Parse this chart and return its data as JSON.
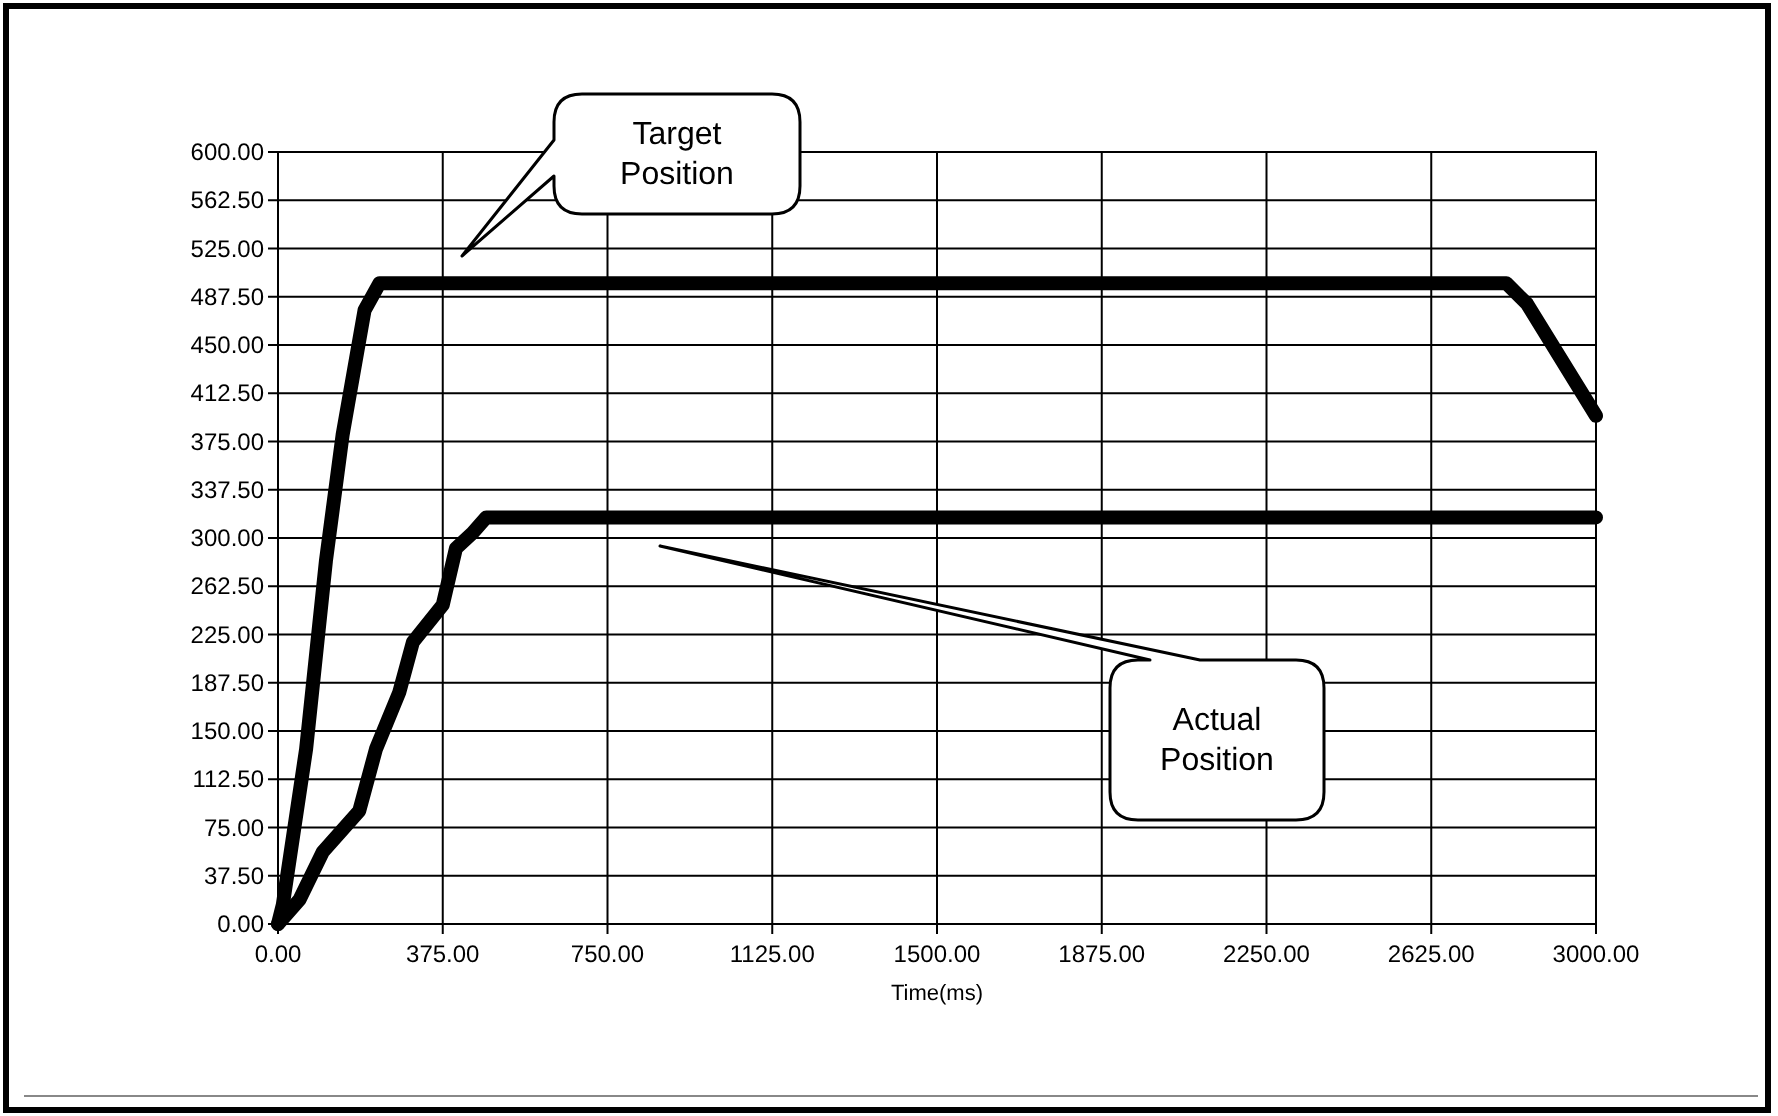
{
  "chart_data": {
    "type": "line",
    "xlabel": "Time(ms)",
    "xlim": [
      0,
      3000
    ],
    "ylim": [
      0,
      600
    ],
    "xticks": [
      {
        "value": 0,
        "label": "0.00"
      },
      {
        "value": 375,
        "label": "375.00"
      },
      {
        "value": 750,
        "label": "750.00"
      },
      {
        "value": 1125,
        "label": "1125.00"
      },
      {
        "value": 1500,
        "label": "1500.00"
      },
      {
        "value": 1875,
        "label": "1875.00"
      },
      {
        "value": 2250,
        "label": "2250.00"
      },
      {
        "value": 2625,
        "label": "2625.00"
      },
      {
        "value": 3000,
        "label": "3000.00"
      }
    ],
    "yticks": [
      {
        "value": 0,
        "label": "0.00"
      },
      {
        "value": 37.5,
        "label": "37.50"
      },
      {
        "value": 75,
        "label": "75.00"
      },
      {
        "value": 112.5,
        "label": "112.50"
      },
      {
        "value": 150,
        "label": "150.00"
      },
      {
        "value": 187.5,
        "label": "187.50"
      },
      {
        "value": 225,
        "label": "225.00"
      },
      {
        "value": 262.5,
        "label": "262.50"
      },
      {
        "value": 300,
        "label": "300.00"
      },
      {
        "value": 337.5,
        "label": "337.50"
      },
      {
        "value": 375,
        "label": "375.00"
      },
      {
        "value": 412.5,
        "label": "412.50"
      },
      {
        "value": 450,
        "label": "450.00"
      },
      {
        "value": 487.5,
        "label": "487.50"
      },
      {
        "value": 525,
        "label": "525.00"
      },
      {
        "value": 562.5,
        "label": "562.50"
      },
      {
        "value": 600,
        "label": "600.00"
      }
    ],
    "grid": true,
    "series": [
      {
        "color": "#000000",
        "x": [
          0,
          11,
          64,
          109,
          147,
          197,
          231,
          2796,
          2843,
          3000
        ],
        "values": [
          0,
          15,
          136,
          282,
          380,
          477,
          498,
          498,
          482,
          395
        ]
      },
      {
        "color": "#000000",
        "x": [
          0,
          49,
          102,
          185,
          223,
          276,
          307,
          375,
          405,
          443,
          474,
          3000
        ],
        "values": [
          0,
          19,
          56,
          88,
          136,
          180,
          219,
          248,
          292,
          304,
          316,
          316
        ]
      }
    ],
    "annotations": [
      "Target Position",
      "Actual Position"
    ]
  }
}
